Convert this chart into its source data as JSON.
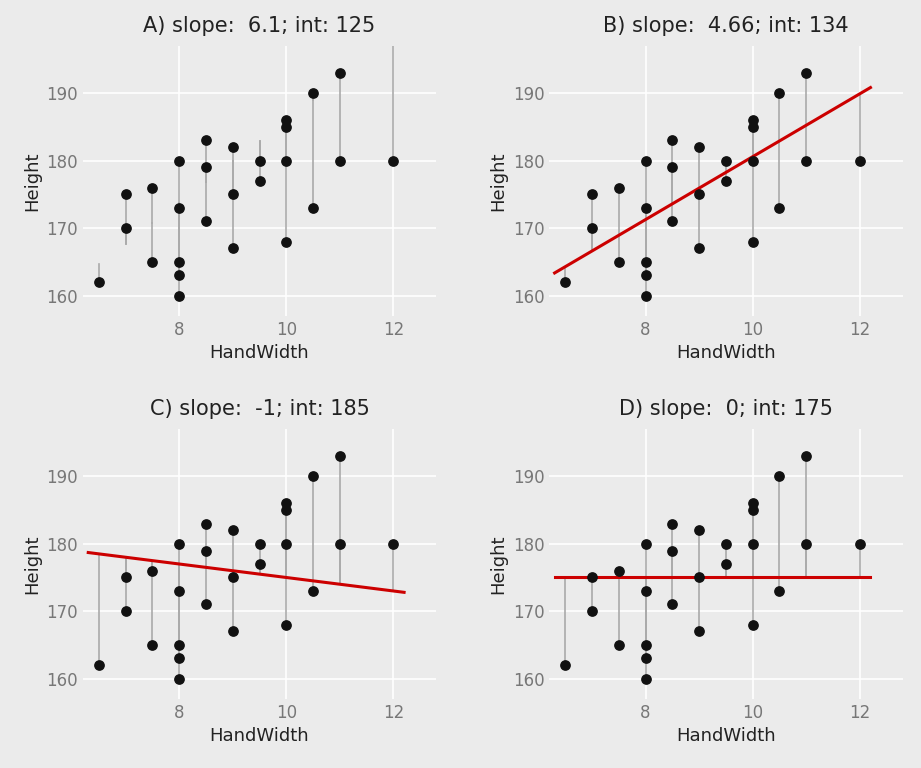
{
  "hand_width": [
    6.5,
    7.0,
    7.0,
    7.5,
    7.5,
    8.0,
    8.0,
    8.0,
    8.0,
    8.0,
    8.5,
    8.5,
    8.5,
    9.0,
    9.0,
    9.0,
    9.5,
    9.5,
    10.0,
    10.0,
    10.0,
    10.0,
    10.5,
    10.5,
    11.0,
    11.0,
    12.0
  ],
  "height": [
    162,
    175,
    170,
    176,
    165,
    180,
    173,
    165,
    163,
    160,
    183,
    179,
    171,
    182,
    175,
    167,
    180,
    177,
    186,
    185,
    180,
    168,
    190,
    173,
    193,
    180,
    180
  ],
  "panels": [
    {
      "label": "A) slope:  6.1; int: 125",
      "slope": 6.1,
      "intercept": 125,
      "show_line": false,
      "line_color": "#CC0000"
    },
    {
      "label": "B) slope:  4.66; int: 134",
      "slope": 4.66,
      "intercept": 134,
      "show_line": true,
      "line_color": "#CC0000"
    },
    {
      "label": "C) slope:  -1; int: 185",
      "slope": -1.0,
      "intercept": 185,
      "show_line": true,
      "line_color": "#CC0000"
    },
    {
      "label": "D) slope:  0; int: 175",
      "slope": 0.0,
      "intercept": 175,
      "show_line": true,
      "line_color": "#CC0000"
    }
  ],
  "xlim": [
    6.2,
    12.8
  ],
  "ylim": [
    157,
    197
  ],
  "xticks": [
    8,
    10,
    12
  ],
  "yticks": [
    160,
    170,
    180,
    190
  ],
  "xlabel": "HandWidth",
  "ylabel": "Height",
  "point_color": "#111111",
  "point_size": 45,
  "residual_color": "#aaaaaa",
  "background_color": "#ebebeb",
  "grid_color": "#ffffff",
  "title_fontsize": 15,
  "axis_label_fontsize": 13,
  "tick_fontsize": 12,
  "tick_color": "#777777",
  "label_color": "#222222"
}
